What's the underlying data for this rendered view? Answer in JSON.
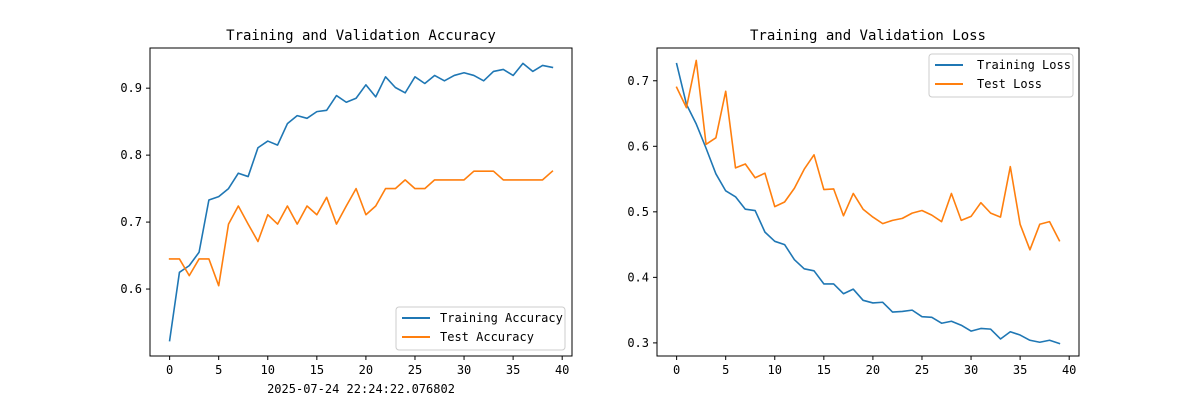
{
  "colors": {
    "training": "#1f77b4",
    "test": "#ff7f0e"
  },
  "timestamp": "2025-07-24 22:24:22.076802",
  "chart_data": [
    {
      "type": "line",
      "title": "Training and Validation Accuracy",
      "xlabel": "",
      "ylabel": "",
      "xlim": [
        -2,
        41
      ],
      "ylim": [
        0.5,
        0.96
      ],
      "xticks": [
        0,
        5,
        10,
        15,
        20,
        25,
        30,
        35,
        40
      ],
      "yticks": [
        0.6,
        0.7,
        0.8,
        0.9
      ],
      "ytick_labels": [
        "0.6",
        "0.7",
        "0.8",
        "0.9"
      ],
      "legend_position": "bottom-right",
      "x": [
        0,
        1,
        2,
        3,
        4,
        5,
        6,
        7,
        8,
        9,
        10,
        11,
        12,
        13,
        14,
        15,
        16,
        17,
        18,
        19,
        20,
        21,
        22,
        23,
        24,
        25,
        26,
        27,
        28,
        29,
        30,
        31,
        32,
        33,
        34,
        35,
        36,
        37,
        38,
        39
      ],
      "series": [
        {
          "name": "Training Accuracy",
          "color_key": "training",
          "values": [
            0.523,
            0.625,
            0.635,
            0.655,
            0.733,
            0.738,
            0.75,
            0.773,
            0.768,
            0.811,
            0.821,
            0.815,
            0.847,
            0.859,
            0.855,
            0.865,
            0.867,
            0.889,
            0.879,
            0.885,
            0.905,
            0.887,
            0.917,
            0.901,
            0.893,
            0.917,
            0.907,
            0.919,
            0.911,
            0.919,
            0.923,
            0.919,
            0.911,
            0.925,
            0.928,
            0.919,
            0.937,
            0.925,
            0.934,
            0.931
          ]
        },
        {
          "name": "Test Accuracy",
          "color_key": "test",
          "values": [
            0.645,
            0.645,
            0.62,
            0.645,
            0.645,
            0.605,
            0.697,
            0.724,
            0.697,
            0.671,
            0.711,
            0.697,
            0.724,
            0.697,
            0.724,
            0.711,
            0.737,
            0.697,
            0.724,
            0.75,
            0.711,
            0.724,
            0.75,
            0.75,
            0.763,
            0.75,
            0.75,
            0.763,
            0.763,
            0.763,
            0.763,
            0.776,
            0.776,
            0.776,
            0.763,
            0.763,
            0.763,
            0.763,
            0.763,
            0.776
          ]
        }
      ]
    },
    {
      "type": "line",
      "title": "Training and Validation Loss",
      "xlabel": "",
      "ylabel": "",
      "xlim": [
        -2,
        41
      ],
      "ylim": [
        0.28,
        0.75
      ],
      "xticks": [
        0,
        5,
        10,
        15,
        20,
        25,
        30,
        35,
        40
      ],
      "yticks": [
        0.3,
        0.4,
        0.5,
        0.6,
        0.7
      ],
      "ytick_labels": [
        "0.3",
        "0.4",
        "0.5",
        "0.6",
        "0.7"
      ],
      "legend_position": "top-right",
      "x": [
        0,
        1,
        2,
        3,
        4,
        5,
        6,
        7,
        8,
        9,
        10,
        11,
        12,
        13,
        14,
        15,
        16,
        17,
        18,
        19,
        20,
        21,
        22,
        23,
        24,
        25,
        26,
        27,
        28,
        29,
        30,
        31,
        32,
        33,
        34,
        35,
        36,
        37,
        38,
        39
      ],
      "series": [
        {
          "name": "Training Loss",
          "color_key": "training",
          "values": [
            0.726,
            0.664,
            0.634,
            0.597,
            0.558,
            0.532,
            0.523,
            0.504,
            0.502,
            0.469,
            0.455,
            0.45,
            0.427,
            0.413,
            0.41,
            0.39,
            0.39,
            0.375,
            0.382,
            0.365,
            0.361,
            0.362,
            0.347,
            0.348,
            0.35,
            0.34,
            0.339,
            0.33,
            0.333,
            0.327,
            0.318,
            0.322,
            0.321,
            0.306,
            0.317,
            0.312,
            0.304,
            0.301,
            0.304,
            0.299
          ]
        },
        {
          "name": "Test Loss",
          "color_key": "test",
          "values": [
            0.69,
            0.659,
            0.731,
            0.603,
            0.613,
            0.684,
            0.567,
            0.573,
            0.552,
            0.559,
            0.508,
            0.515,
            0.536,
            0.565,
            0.587,
            0.534,
            0.535,
            0.494,
            0.528,
            0.504,
            0.492,
            0.482,
            0.487,
            0.49,
            0.498,
            0.502,
            0.495,
            0.485,
            0.528,
            0.487,
            0.493,
            0.514,
            0.498,
            0.492,
            0.569,
            0.481,
            0.442,
            0.481,
            0.485,
            0.456
          ]
        }
      ]
    }
  ]
}
